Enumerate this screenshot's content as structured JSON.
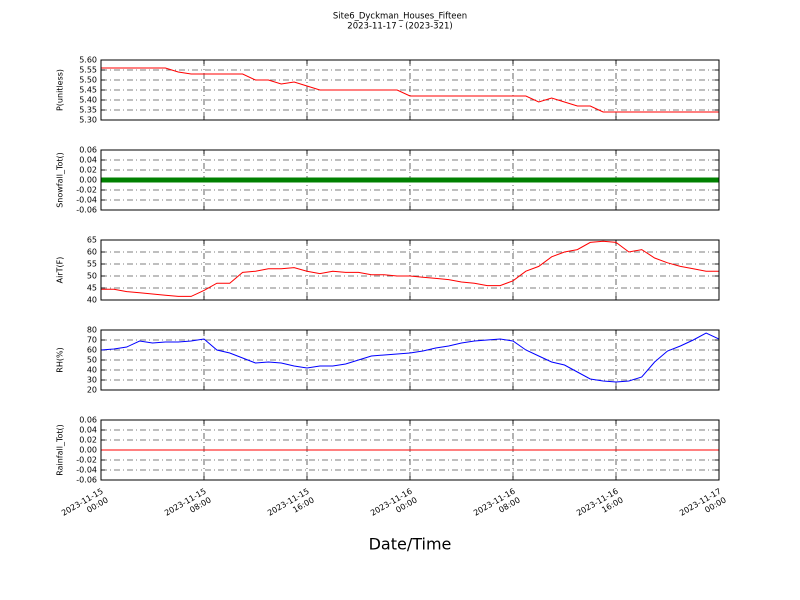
{
  "chart_data": {
    "type": "line",
    "title": "Site6_Dyckman_Houses_Fifteen",
    "subtitle": "2023-11-17 - (2023-321)",
    "xlabel": "Date/Time",
    "grid": true,
    "xlim": [
      "2023-11-15 00:00",
      "2023-11-17 00:00"
    ],
    "xticks": [
      {
        "value": "2023-11-15 00:00",
        "label": [
          "2023-11-15",
          "00:00"
        ]
      },
      {
        "value": "2023-11-15 08:00",
        "label": [
          "2023-11-15",
          "08:00"
        ]
      },
      {
        "value": "2023-11-15 16:00",
        "label": [
          "2023-11-15",
          "16:00"
        ]
      },
      {
        "value": "2023-11-16 00:00",
        "label": [
          "2023-11-16",
          "00:00"
        ]
      },
      {
        "value": "2023-11-16 08:00",
        "label": [
          "2023-11-16",
          "08:00"
        ]
      },
      {
        "value": "2023-11-16 16:00",
        "label": [
          "2023-11-16",
          "16:00"
        ]
      },
      {
        "value": "2023-11-17 00:00",
        "label": [
          "2023-11-17",
          "00:00"
        ]
      }
    ],
    "x": [
      "2023-11-15 00:00",
      "2023-11-15 01:00",
      "2023-11-15 02:00",
      "2023-11-15 03:00",
      "2023-11-15 04:00",
      "2023-11-15 05:00",
      "2023-11-15 06:00",
      "2023-11-15 07:00",
      "2023-11-15 08:00",
      "2023-11-15 09:00",
      "2023-11-15 10:00",
      "2023-11-15 11:00",
      "2023-11-15 12:00",
      "2023-11-15 13:00",
      "2023-11-15 14:00",
      "2023-11-15 15:00",
      "2023-11-15 16:00",
      "2023-11-15 17:00",
      "2023-11-15 18:00",
      "2023-11-15 19:00",
      "2023-11-15 20:00",
      "2023-11-15 21:00",
      "2023-11-15 22:00",
      "2023-11-15 23:00",
      "2023-11-16 00:00",
      "2023-11-16 01:00",
      "2023-11-16 02:00",
      "2023-11-16 03:00",
      "2023-11-16 04:00",
      "2023-11-16 05:00",
      "2023-11-16 06:00",
      "2023-11-16 07:00",
      "2023-11-16 08:00",
      "2023-11-16 09:00",
      "2023-11-16 10:00",
      "2023-11-16 11:00",
      "2023-11-16 12:00",
      "2023-11-16 13:00",
      "2023-11-16 14:00",
      "2023-11-16 15:00",
      "2023-11-16 16:00",
      "2023-11-16 17:00",
      "2023-11-16 18:00",
      "2023-11-16 19:00",
      "2023-11-16 20:00",
      "2023-11-16 21:00",
      "2023-11-16 22:00",
      "2023-11-16 23:00",
      "2023-11-17 00:00"
    ],
    "panels": [
      {
        "ylabel": "P(unitless)",
        "color": "#ff0000",
        "linewidth": 1,
        "ylim": [
          5.3,
          5.6
        ],
        "yticks": [
          {
            "value": 5.3,
            "label": "5.30"
          },
          5.35,
          {
            "value": 5.4,
            "label": "5.40"
          },
          5.45,
          {
            "value": 5.5,
            "label": "5.50"
          },
          5.55,
          {
            "value": 5.6,
            "label": "5.60"
          }
        ],
        "values": [
          5.56,
          5.56,
          5.56,
          5.56,
          5.56,
          5.56,
          5.54,
          5.53,
          5.53,
          5.53,
          5.53,
          5.53,
          5.5,
          5.5,
          5.48,
          5.49,
          5.47,
          5.45,
          5.45,
          5.45,
          5.45,
          5.45,
          5.45,
          5.45,
          5.42,
          5.42,
          5.42,
          5.42,
          5.42,
          5.42,
          5.42,
          5.42,
          5.42,
          5.42,
          5.39,
          5.41,
          5.39,
          5.37,
          5.37,
          5.34,
          5.34,
          5.34,
          5.34,
          5.34,
          5.34,
          5.34,
          5.34,
          5.34,
          5.34
        ]
      },
      {
        "ylabel": "Snowfall_Tot()",
        "color": "#008000",
        "linewidth": 5,
        "ylim": [
          -0.06,
          0.06
        ],
        "yticks": [
          -0.06,
          -0.04,
          -0.02,
          {
            "value": 0,
            "label": "0.00"
          },
          0.02,
          0.04,
          0.06
        ],
        "values": [
          0,
          0,
          0,
          0,
          0,
          0,
          0,
          0,
          0,
          0,
          0,
          0,
          0,
          0,
          0,
          0,
          0,
          0,
          0,
          0,
          0,
          0,
          0,
          0,
          0,
          0,
          0,
          0,
          0,
          0,
          0,
          0,
          0,
          0,
          0,
          0,
          0,
          0,
          0,
          0,
          0,
          0,
          0,
          0,
          0,
          0,
          0,
          0,
          0
        ]
      },
      {
        "ylabel": "AirT(F)",
        "color": "#ff0000",
        "linewidth": 1,
        "ylim": [
          40,
          65
        ],
        "yticks": [
          40,
          45,
          50,
          55,
          60,
          65
        ],
        "values": [
          44.5,
          44.5,
          43.5,
          43,
          42.5,
          42,
          41.5,
          41.5,
          44,
          47,
          47,
          51.5,
          52,
          53,
          53,
          53.5,
          52,
          51,
          52,
          51.5,
          51.5,
          50.5,
          50.5,
          50,
          50,
          49.5,
          49,
          48.5,
          47.5,
          47,
          46,
          46,
          48,
          52,
          54,
          58,
          60,
          61,
          64,
          64.5,
          64,
          60,
          61,
          57.5,
          55.5,
          54,
          53,
          52,
          52
        ]
      },
      {
        "ylabel": "RH(%)",
        "color": "#0000ff",
        "linewidth": 1,
        "ylim": [
          20,
          80
        ],
        "yticks": [
          20,
          30,
          40,
          50,
          60,
          70,
          80
        ],
        "values": [
          60,
          61,
          63,
          69,
          67,
          68,
          68,
          69,
          71,
          60,
          57,
          52,
          47,
          48,
          47,
          44,
          42,
          44,
          44,
          46,
          50,
          54,
          55,
          56,
          57,
          59,
          62,
          64,
          67,
          69,
          70,
          71,
          69,
          60,
          54,
          48,
          45,
          38,
          31,
          29,
          28,
          29,
          33,
          48,
          59,
          64,
          70,
          77,
          71
        ]
      },
      {
        "ylabel": "Rainfall_Tot()",
        "color": "#ff0000",
        "linewidth": 1,
        "ylim": [
          -0.06,
          0.06
        ],
        "yticks": [
          -0.06,
          -0.04,
          -0.02,
          {
            "value": 0,
            "label": "0.00"
          },
          0.02,
          0.04,
          0.06
        ],
        "values": [
          0,
          0,
          0,
          0,
          0,
          0,
          0,
          0,
          0,
          0,
          0,
          0,
          0,
          0,
          0,
          0,
          0,
          0,
          0,
          0,
          0,
          0,
          0,
          0,
          0,
          0,
          0,
          0,
          0,
          0,
          0,
          0,
          0,
          0,
          0,
          0,
          0,
          0,
          0,
          0,
          0,
          0,
          0,
          0,
          0,
          0,
          0,
          0,
          0
        ]
      }
    ]
  }
}
